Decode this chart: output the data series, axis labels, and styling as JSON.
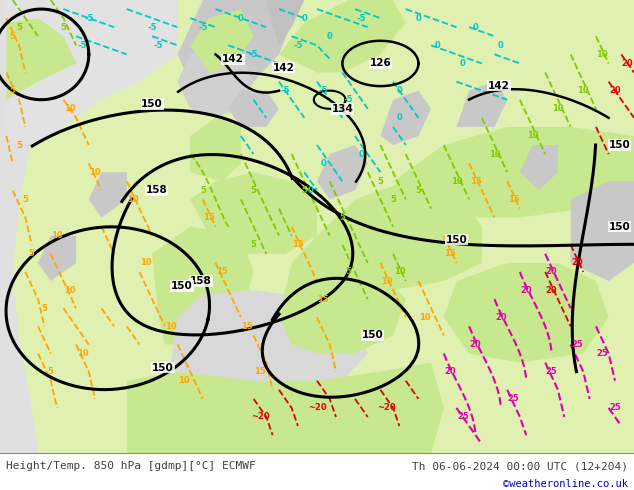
{
  "title_left": "Height/Temp. 850 hPa [gdmp][°C] ECMWF",
  "title_right": "Th 06-06-2024 00:00 UTC (12+204)",
  "credit": "©weatheronline.co.uk",
  "figsize": [
    6.34,
    4.9
  ],
  "dpi": 100,
  "bg_color_light": "#e8f5d0",
  "bg_color_gray": "#d0d0d0",
  "bg_color_white": "#f0f0f0",
  "bg_color_ocean": "#e0e0e0",
  "contour_black": "#000000",
  "contour_orange": "#ffa500",
  "contour_cyan": "#00c8c8",
  "contour_green": "#80c800",
  "contour_red": "#dd0000",
  "contour_magenta": "#dd00aa",
  "bottom_bar_color": "#ffffff",
  "bottom_text_color": "#404040",
  "credit_color": "#0000cc"
}
